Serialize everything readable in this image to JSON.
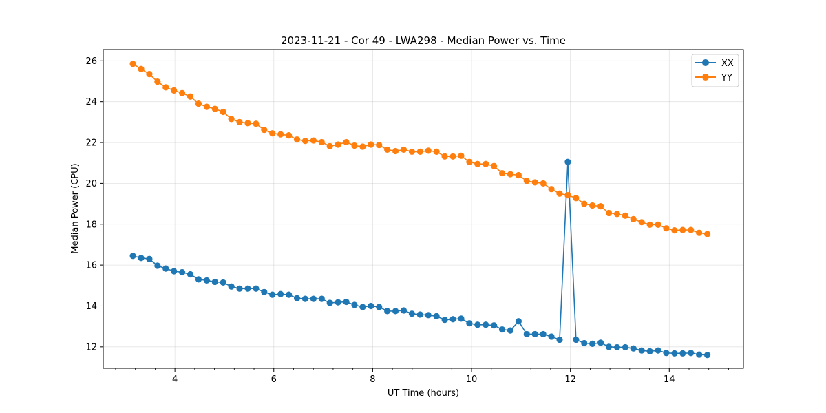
{
  "chart_data": {
    "type": "line",
    "title": "2023-11-21 - Cor 49 - LWA298 - Median Power vs. Time",
    "xlabel": "UT Time (hours)",
    "ylabel": "Median Power (CPU)",
    "xlim": [
      2.55,
      15.5
    ],
    "ylim": [
      10.95,
      26.55
    ],
    "xticks": [
      4,
      6,
      8,
      10,
      12,
      14
    ],
    "yticks": [
      12,
      14,
      16,
      18,
      20,
      22,
      24,
      26
    ],
    "grid": true,
    "legend_position": "top-right",
    "x": [
      3.15,
      3.316,
      3.482,
      3.648,
      3.814,
      3.98,
      4.146,
      4.312,
      4.478,
      4.644,
      4.81,
      4.976,
      5.142,
      5.308,
      5.474,
      5.64,
      5.806,
      5.972,
      6.138,
      6.304,
      6.47,
      6.636,
      6.802,
      6.968,
      7.134,
      7.3,
      7.466,
      7.632,
      7.798,
      7.964,
      8.13,
      8.296,
      8.462,
      8.628,
      8.794,
      8.96,
      9.126,
      9.292,
      9.458,
      9.624,
      9.79,
      9.956,
      10.122,
      10.288,
      10.454,
      10.62,
      10.786,
      10.952,
      11.118,
      11.284,
      11.45,
      11.616,
      11.782,
      11.948,
      12.114,
      12.28,
      12.446,
      12.612,
      12.778,
      12.944,
      13.11,
      13.276,
      13.442,
      13.608,
      13.774,
      13.94,
      14.106,
      14.272,
      14.438,
      14.604,
      14.77
    ],
    "series": [
      {
        "name": "XX",
        "color": "#1f77b4",
        "values": [
          16.45,
          16.35,
          16.3,
          15.97,
          15.83,
          15.7,
          15.65,
          15.55,
          15.3,
          15.25,
          15.18,
          15.15,
          14.95,
          14.85,
          14.85,
          14.85,
          14.68,
          14.55,
          14.58,
          14.55,
          14.38,
          14.35,
          14.35,
          14.35,
          14.15,
          14.18,
          14.2,
          14.05,
          13.95,
          14.0,
          13.95,
          13.75,
          13.75,
          13.78,
          13.62,
          13.58,
          13.55,
          13.5,
          13.32,
          13.35,
          13.38,
          13.15,
          13.08,
          13.08,
          13.05,
          12.85,
          12.8,
          13.25,
          12.62,
          12.62,
          12.62,
          12.5,
          12.35,
          21.05,
          12.35,
          12.18,
          12.15,
          12.2,
          12.0,
          11.98,
          11.98,
          11.92,
          11.82,
          11.78,
          11.82,
          11.7,
          11.68,
          11.68,
          11.7,
          11.62,
          11.6
        ]
      },
      {
        "name": "YY",
        "color": "#ff7f0e",
        "values": [
          25.85,
          25.6,
          25.35,
          24.98,
          24.7,
          24.55,
          24.42,
          24.25,
          23.9,
          23.75,
          23.65,
          23.5,
          23.15,
          23.0,
          22.95,
          22.92,
          22.62,
          22.45,
          22.4,
          22.35,
          22.15,
          22.08,
          22.1,
          22.02,
          21.82,
          21.9,
          22.02,
          21.85,
          21.8,
          21.9,
          21.88,
          21.65,
          21.58,
          21.65,
          21.55,
          21.55,
          21.6,
          21.55,
          21.32,
          21.32,
          21.35,
          21.05,
          20.95,
          20.95,
          20.85,
          20.5,
          20.45,
          20.4,
          20.12,
          20.05,
          20.0,
          19.72,
          19.5,
          19.42,
          19.28,
          19.0,
          18.92,
          18.88,
          18.55,
          18.5,
          18.42,
          18.25,
          18.1,
          17.98,
          17.98,
          17.8,
          17.7,
          17.72,
          17.72,
          17.58,
          17.52
        ]
      }
    ]
  }
}
